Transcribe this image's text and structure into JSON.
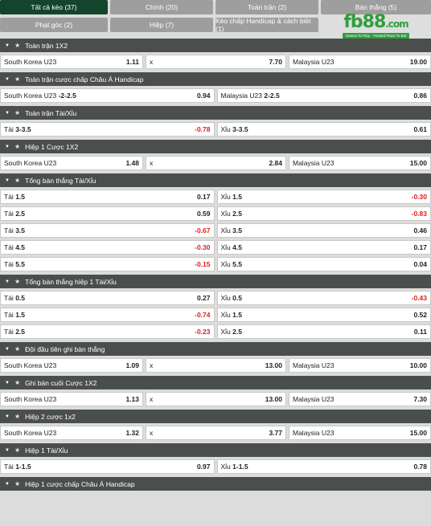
{
  "tabs": [
    {
      "label": "Tất cả kèo (37)",
      "active": true
    },
    {
      "label": "Chính (20)"
    },
    {
      "label": "Toàn trận (2)"
    },
    {
      "label": "Bàn thắng (5)"
    },
    {
      "label": "Phạt góc (2)"
    },
    {
      "label": "Hiệp (7)"
    },
    {
      "label": "Kèo chấp Handicap & cách biệt (1)"
    }
  ],
  "logo": {
    "text": "fb88",
    "tld": ".com",
    "tagline": "Games To Play · Trusted Place To Bet"
  },
  "sections": [
    {
      "title": "Toàn trận 1X2",
      "rows": [
        [
          {
            "label": "South Korea U23",
            "odd": "1.11"
          },
          {
            "label": "x",
            "odd": "7.70"
          },
          {
            "label": "Malaysia U23",
            "odd": "19.00"
          }
        ]
      ]
    },
    {
      "title": "Toàn trận cược chấp Châu Á Handicap",
      "rows": [
        [
          {
            "label": "South Korea U23",
            "line": "-2-2.5",
            "odd": "0.94"
          },
          {
            "label": "Malaysia U23",
            "line": "2-2.5",
            "odd": "0.86"
          }
        ]
      ]
    },
    {
      "title": "Toàn trận Tài/Xỉu",
      "rows": [
        [
          {
            "label": "Tài",
            "line": "3-3.5",
            "odd": "-0.78"
          },
          {
            "label": "Xỉu",
            "line": "3-3.5",
            "odd": "0.61"
          }
        ]
      ]
    },
    {
      "title": "Hiệp 1 Cược 1X2",
      "rows": [
        [
          {
            "label": "South Korea U23",
            "odd": "1.48"
          },
          {
            "label": "x",
            "odd": "2.84"
          },
          {
            "label": "Malaysia U23",
            "odd": "15.00"
          }
        ]
      ]
    },
    {
      "title": "Tổng bàn thắng Tài/Xỉu",
      "rows": [
        [
          {
            "label": "Tài",
            "line": "1.5",
            "odd": "0.17"
          },
          {
            "label": "Xỉu",
            "line": "1.5",
            "odd": "-0.30"
          }
        ],
        [
          {
            "label": "Tài",
            "line": "2.5",
            "odd": "0.59"
          },
          {
            "label": "Xỉu",
            "line": "2.5",
            "odd": "-0.83"
          }
        ],
        [
          {
            "label": "Tài",
            "line": "3.5",
            "odd": "-0.67"
          },
          {
            "label": "Xỉu",
            "line": "3.5",
            "odd": "0.46"
          }
        ],
        [
          {
            "label": "Tài",
            "line": "4.5",
            "odd": "-0.30"
          },
          {
            "label": "Xỉu",
            "line": "4.5",
            "odd": "0.17"
          }
        ],
        [
          {
            "label": "Tài",
            "line": "5.5",
            "odd": "-0.15"
          },
          {
            "label": "Xỉu",
            "line": "5.5",
            "odd": "0.04"
          }
        ]
      ]
    },
    {
      "title": "Tổng bàn thắng hiệp 1 Tài/Xỉu",
      "rows": [
        [
          {
            "label": "Tài",
            "line": "0.5",
            "odd": "0.27"
          },
          {
            "label": "Xỉu",
            "line": "0.5",
            "odd": "-0.43"
          }
        ],
        [
          {
            "label": "Tài",
            "line": "1.5",
            "odd": "-0.74"
          },
          {
            "label": "Xỉu",
            "line": "1.5",
            "odd": "0.52"
          }
        ],
        [
          {
            "label": "Tài",
            "line": "2.5",
            "odd": "-0.23"
          },
          {
            "label": "Xỉu",
            "line": "2.5",
            "odd": "0.11"
          }
        ]
      ]
    },
    {
      "title": "Đội đầu tiên ghi bàn thắng",
      "rows": [
        [
          {
            "label": "South Korea U23",
            "odd": "1.09"
          },
          {
            "label": "x",
            "odd": "13.00"
          },
          {
            "label": "Malaysia U23",
            "odd": "10.00"
          }
        ]
      ]
    },
    {
      "title": "Ghi bàn cuối Cược 1X2",
      "rows": [
        [
          {
            "label": "South Korea U23",
            "odd": "1.13"
          },
          {
            "label": "x",
            "odd": "13.00"
          },
          {
            "label": "Malaysia U23",
            "odd": "7.30"
          }
        ]
      ]
    },
    {
      "title": "Hiệp 2 cược 1x2",
      "rows": [
        [
          {
            "label": "South Korea U23",
            "odd": "1.32"
          },
          {
            "label": "x",
            "odd": "3.77"
          },
          {
            "label": "Malaysia U23",
            "odd": "15.00"
          }
        ]
      ]
    },
    {
      "title": "Hiệp 1 Tài/Xỉu",
      "rows": [
        [
          {
            "label": "Tài",
            "line": "1-1.5",
            "odd": "0.97"
          },
          {
            "label": "Xỉu",
            "line": "1-1.5",
            "odd": "0.78"
          }
        ]
      ]
    },
    {
      "title": "Hiệp 1 cược chấp Châu Á Handicap",
      "rows": []
    }
  ]
}
